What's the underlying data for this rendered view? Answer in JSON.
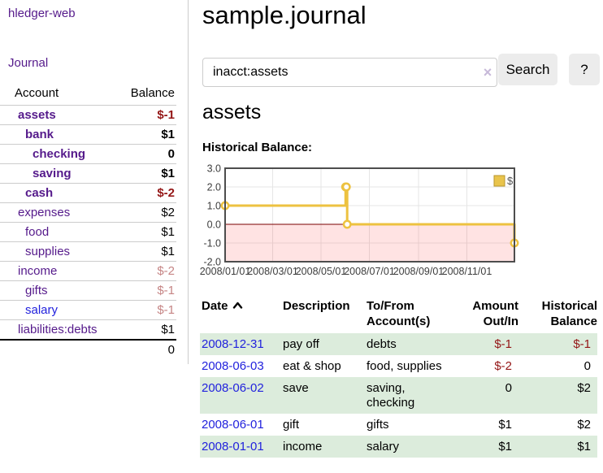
{
  "app": {
    "brand": "hledger-web"
  },
  "sidebar": {
    "nav_journal": "Journal",
    "accounts": {
      "col_account": "Account",
      "col_balance": "Balance",
      "rows": [
        {
          "name": "assets",
          "depth": 1,
          "bold": true,
          "link_color": "purple",
          "balance": "$-1",
          "balance_class": "neg"
        },
        {
          "name": "bank",
          "depth": 2,
          "bold": true,
          "link_color": "purple",
          "balance": "$1",
          "balance_class": "pos"
        },
        {
          "name": "checking",
          "depth": 3,
          "bold": true,
          "link_color": "purple",
          "balance": "0",
          "balance_class": "pos"
        },
        {
          "name": "saving",
          "depth": 3,
          "bold": true,
          "link_color": "purple",
          "balance": "$1",
          "balance_class": "pos"
        },
        {
          "name": "cash",
          "depth": 2,
          "bold": true,
          "link_color": "purple",
          "balance": "$-2",
          "balance_class": "neg"
        },
        {
          "name": "expenses",
          "depth": 1,
          "bold": false,
          "link_color": "purple",
          "balance": "$2",
          "balance_class": "pos"
        },
        {
          "name": "food",
          "depth": 2,
          "bold": false,
          "link_color": "purple",
          "balance": "$1",
          "balance_class": "pos"
        },
        {
          "name": "supplies",
          "depth": 2,
          "bold": false,
          "link_color": "purple",
          "balance": "$1",
          "balance_class": "pos"
        },
        {
          "name": "income",
          "depth": 1,
          "bold": false,
          "link_color": "purple",
          "balance": "$-2",
          "balance_class": "negfade"
        },
        {
          "name": "gifts",
          "depth": 2,
          "bold": false,
          "link_color": "purple",
          "balance": "$-1",
          "balance_class": "negfade"
        },
        {
          "name": "salary",
          "depth": 2,
          "bold": false,
          "link_color": "blue",
          "balance": "$-1",
          "balance_class": "negfade"
        },
        {
          "name": "liabilities:debts",
          "depth": 1,
          "bold": false,
          "link_color": "purple",
          "balance": "$1",
          "balance_class": "pos"
        }
      ],
      "total": "0"
    }
  },
  "header": {
    "title": "sample.journal"
  },
  "search": {
    "value": "inacct:assets",
    "clear_glyph": "×",
    "button_label": "Search",
    "help_label": "?"
  },
  "account_page": {
    "heading": "assets"
  },
  "chart_data": {
    "type": "line",
    "title": "Historical Balance:",
    "legend": [
      {
        "label": "$",
        "color": "#e9c44c"
      }
    ],
    "series": [
      {
        "name": "$",
        "color": "#edc240",
        "step": true,
        "points": [
          [
            "2008-01-01",
            1
          ],
          [
            "2008-06-01",
            2
          ],
          [
            "2008-06-02",
            2
          ],
          [
            "2008-06-03",
            0
          ],
          [
            "2008-12-31",
            -1
          ]
        ]
      }
    ],
    "xlim": [
      "2008-01-01",
      "2008-12-31"
    ],
    "ylim": [
      -2,
      3
    ],
    "x_ticks": [
      {
        "date": "2008-01-01",
        "label": "2008/01/01"
      },
      {
        "date": "2008-03-01",
        "label": "2008/03/01"
      },
      {
        "date": "2008-05-01",
        "label": "2008/05/01"
      },
      {
        "date": "2008-07-01",
        "label": "2008/07/01"
      },
      {
        "date": "2008-09-01",
        "label": "2008/09/01"
      },
      {
        "date": "2008-11-01",
        "label": "2008/11/01"
      }
    ],
    "y_ticks": [
      {
        "value": 3,
        "label": "3.0"
      },
      {
        "value": 2,
        "label": "2.0"
      },
      {
        "value": 1,
        "label": "1.0"
      },
      {
        "value": 0,
        "label": "0.0"
      },
      {
        "value": -1,
        "label": "-1.0"
      },
      {
        "value": -2,
        "label": "-2.0"
      }
    ],
    "grid": true,
    "legend_position": "top-right",
    "negative_region_fill": "rgba(255,0,0,0.11)",
    "zero_line_color": "#7a0000",
    "border_color": "#4d4d4d"
  },
  "register": {
    "col_date": "Date",
    "sort_indicator": "ascending",
    "col_description": "Description",
    "col_accounts": "To/From Account(s)",
    "col_amount": "Amount Out/In",
    "col_balance": "Historical Balance",
    "rows": [
      {
        "date": "2008-12-31",
        "description": "pay off",
        "accounts": "debts",
        "amount": "$-1",
        "amount_neg": true,
        "balance": "$-1",
        "balance_neg": true
      },
      {
        "date": "2008-06-03",
        "description": "eat & shop",
        "accounts": "food, supplies",
        "amount": "$-2",
        "amount_neg": true,
        "balance": "0",
        "balance_neg": false
      },
      {
        "date": "2008-06-02",
        "description": "save",
        "accounts": "saving,\nchecking",
        "amount": "0",
        "amount_neg": false,
        "balance": "$2",
        "balance_neg": false
      },
      {
        "date": "2008-06-01",
        "description": "gift",
        "accounts": "gifts",
        "amount": "$1",
        "amount_neg": false,
        "balance": "$2",
        "balance_neg": false
      },
      {
        "date": "2008-01-01",
        "description": "income",
        "accounts": "salary",
        "amount": "$1",
        "amount_neg": false,
        "balance": "$1",
        "balance_neg": false
      }
    ]
  },
  "colors": {
    "link_purple": "#551a8b",
    "link_blue": "#2222dd",
    "negative": "#941616",
    "negative_faded": "#c68585",
    "row_green": "#dcecdc",
    "chart_line": "#edc240",
    "zero_line": "#7a0000",
    "button_bg": "#ececec"
  }
}
